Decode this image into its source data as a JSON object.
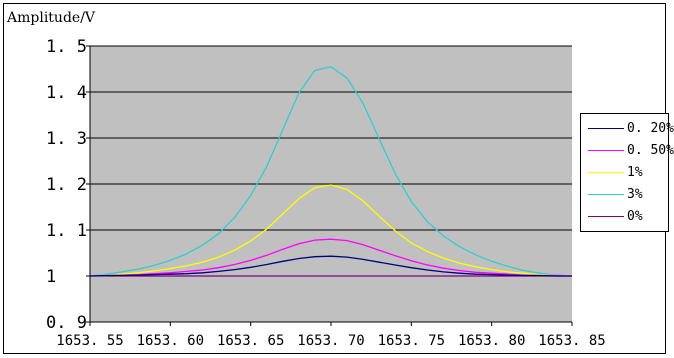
{
  "chart_data": {
    "type": "line",
    "ylabel": "Amplitude/V",
    "xlim": [
      1653.55,
      1653.85
    ],
    "ylim": [
      0.9,
      1.5
    ],
    "x_ticks": [
      1653.55,
      1653.6,
      1653.65,
      1653.7,
      1653.75,
      1653.8,
      1653.85
    ],
    "x_tick_labels": [
      "1653. 55",
      "1653. 60",
      "1653. 65",
      "1653. 70",
      "1653. 75",
      "1653. 80",
      "1653. 85"
    ],
    "y_ticks": [
      0.9,
      1.0,
      1.1,
      1.2,
      1.3,
      1.4,
      1.5
    ],
    "y_tick_labels": [
      "0. 9",
      "1",
      "1. 1",
      "1. 2",
      "1. 3",
      "1. 4",
      "1. 5"
    ],
    "grid": "horizontal",
    "legend_position": "right",
    "plot_background": "#c0c0c0",
    "x": [
      1653.55,
      1653.56,
      1653.57,
      1653.58,
      1653.59,
      1653.6,
      1653.61,
      1653.62,
      1653.63,
      1653.64,
      1653.65,
      1653.66,
      1653.67,
      1653.68,
      1653.69,
      1653.7,
      1653.71,
      1653.72,
      1653.73,
      1653.74,
      1653.75,
      1653.76,
      1653.77,
      1653.78,
      1653.79,
      1653.8,
      1653.81,
      1653.82,
      1653.83,
      1653.84,
      1653.85
    ],
    "series": [
      {
        "name": "0. 20%",
        "color": "#000080",
        "values": [
          1.0,
          1.001,
          1.001,
          1.002,
          1.003,
          1.004,
          1.005,
          1.007,
          1.01,
          1.014,
          1.019,
          1.025,
          1.032,
          1.038,
          1.042,
          1.043,
          1.041,
          1.036,
          1.03,
          1.024,
          1.018,
          1.013,
          1.009,
          1.006,
          1.004,
          1.003,
          1.002,
          1.001,
          1.001,
          1.0,
          1.0
        ]
      },
      {
        "name": "0. 50%",
        "color": "#ff00ff",
        "values": [
          1.0,
          1.001,
          1.002,
          1.003,
          1.005,
          1.007,
          1.01,
          1.013,
          1.018,
          1.025,
          1.034,
          1.045,
          1.058,
          1.07,
          1.078,
          1.08,
          1.077,
          1.068,
          1.056,
          1.044,
          1.033,
          1.024,
          1.017,
          1.012,
          1.008,
          1.006,
          1.004,
          1.002,
          1.001,
          1.001,
          1.0
        ]
      },
      {
        "name": "1%",
        "color": "#ffff00",
        "values": [
          1.0,
          1.002,
          1.004,
          1.007,
          1.011,
          1.016,
          1.022,
          1.03,
          1.041,
          1.056,
          1.076,
          1.102,
          1.135,
          1.168,
          1.192,
          1.198,
          1.188,
          1.163,
          1.13,
          1.098,
          1.072,
          1.053,
          1.039,
          1.028,
          1.02,
          1.014,
          1.009,
          1.006,
          1.003,
          1.001,
          1.0
        ]
      },
      {
        "name": "3%",
        "color": "#33cccc",
        "values": [
          1.0,
          1.004,
          1.009,
          1.015,
          1.023,
          1.034,
          1.048,
          1.067,
          1.092,
          1.127,
          1.175,
          1.238,
          1.318,
          1.398,
          1.447,
          1.455,
          1.43,
          1.375,
          1.298,
          1.222,
          1.162,
          1.118,
          1.087,
          1.064,
          1.046,
          1.032,
          1.021,
          1.012,
          1.006,
          1.002,
          1.0
        ]
      },
      {
        "name": "0%",
        "color": "#800080",
        "values": [
          1.0,
          1.0,
          1.0,
          1.0,
          1.0,
          1.0,
          1.0,
          1.0,
          1.0,
          1.0,
          1.0,
          1.0,
          1.0,
          1.0,
          1.0,
          1.0,
          1.0,
          1.0,
          1.0,
          1.0,
          1.0,
          1.0,
          1.0,
          1.0,
          1.0,
          1.0,
          1.0,
          1.0,
          1.0,
          1.0,
          1.0
        ]
      }
    ]
  }
}
